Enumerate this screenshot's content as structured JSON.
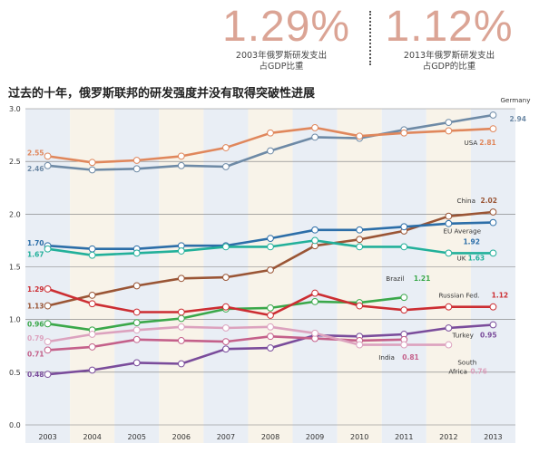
{
  "stat_2003": {
    "value": "1.29%",
    "caption_line1": "2003年俄罗斯研发支出",
    "caption_line2": "占GDP比重"
  },
  "stat_2013": {
    "value": "1.12%",
    "caption_line1": "2013年俄罗斯研发支出",
    "caption_line2": "占GDP的比重"
  },
  "headline": "过去的十年，俄罗斯联邦的研发强度并没有取得突破性进展",
  "chart_data": {
    "type": "line",
    "title": "",
    "xlabel": "",
    "ylabel": "",
    "x": [
      2003,
      2004,
      2005,
      2006,
      2007,
      2008,
      2009,
      2010,
      2011,
      2012,
      2013
    ],
    "ylim": [
      0,
      3.0
    ],
    "yticks": [
      "0.0",
      "0.5",
      "1.0",
      "1.5",
      "2.0",
      "2.5",
      "3.0"
    ],
    "grid": true,
    "series": [
      {
        "name": "Germany",
        "color": "#6e8aa6",
        "values": [
          2.46,
          2.42,
          2.43,
          2.46,
          2.45,
          2.6,
          2.73,
          2.72,
          2.8,
          2.87,
          2.94
        ],
        "start_label": "2.46",
        "end_label": "Germany",
        "end_value": "2.94"
      },
      {
        "name": "USA",
        "color": "#e0875c",
        "values": [
          2.55,
          2.49,
          2.51,
          2.55,
          2.63,
          2.77,
          2.82,
          2.74,
          2.77,
          2.79,
          2.81
        ],
        "start_label": "2.55",
        "end_label": "USA",
        "end_value": "2.81"
      },
      {
        "name": "China",
        "color": "#9a5535",
        "values": [
          1.13,
          1.23,
          1.32,
          1.39,
          1.4,
          1.47,
          1.7,
          1.76,
          1.84,
          1.98,
          2.02
        ],
        "start_label": "1.13",
        "end_label": "China",
        "end_value": "2.02"
      },
      {
        "name": "EU Average",
        "color": "#2c6ea8",
        "values": [
          1.7,
          1.67,
          1.67,
          1.7,
          1.7,
          1.77,
          1.85,
          1.85,
          1.88,
          1.91,
          1.92
        ],
        "start_label": "1.70",
        "end_label": "EU Average",
        "end_value": "1.92"
      },
      {
        "name": "UK",
        "color": "#22b09a",
        "values": [
          1.67,
          1.61,
          1.63,
          1.65,
          1.69,
          1.69,
          1.75,
          1.69,
          1.69,
          1.63,
          1.63
        ],
        "start_label": "1.67",
        "end_label": "UK",
        "end_value": "1.63"
      },
      {
        "name": "Brazil",
        "color": "#3aa84a",
        "values": [
          0.96,
          0.9,
          0.97,
          1.01,
          1.1,
          1.11,
          1.17,
          1.16,
          1.21,
          null,
          null
        ],
        "start_label": "0.96",
        "end_label": "Brazil",
        "end_value": "1.21"
      },
      {
        "name": "Russian Fed.",
        "color": "#cc2d32",
        "values": [
          1.29,
          1.15,
          1.07,
          1.07,
          1.12,
          1.04,
          1.25,
          1.13,
          1.09,
          1.12,
          1.12
        ],
        "start_label": "1.29",
        "end_label": "Russian Fed.",
        "end_value": "1.12"
      },
      {
        "name": "Turkey",
        "color": "#7a4c9b",
        "values": [
          0.48,
          0.52,
          0.59,
          0.58,
          0.72,
          0.73,
          0.85,
          0.84,
          0.86,
          0.92,
          0.95
        ],
        "start_label": "0.48",
        "end_label": "Turkey",
        "end_value": "0.95"
      },
      {
        "name": "India",
        "color": "#c4608a",
        "values": [
          0.71,
          0.74,
          0.81,
          0.8,
          0.79,
          0.84,
          0.82,
          0.8,
          0.81,
          null,
          null
        ],
        "start_label": "0.71",
        "end_label": "India",
        "end_value": "0.81"
      },
      {
        "name": "South Africa",
        "color": "#dca2be",
        "values": [
          0.79,
          0.86,
          0.9,
          0.93,
          0.92,
          0.93,
          0.87,
          0.76,
          0.76,
          0.76,
          null
        ],
        "start_label": "0.79",
        "end_label": "South Africa",
        "end_value": "0.76"
      }
    ]
  }
}
